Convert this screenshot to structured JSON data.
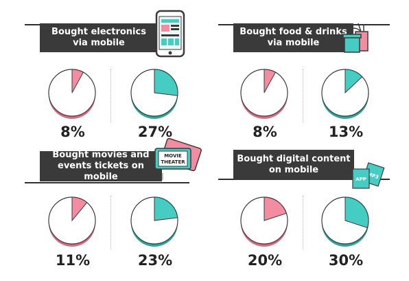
{
  "colors": {
    "pink": "#f48ca0",
    "pink_shadow": "#d96b80",
    "teal": "#45cdc4",
    "teal_shadow": "#2aa79f",
    "banner": "#3a3a3a"
  },
  "icons": {
    "electronics": "smartphone-icon",
    "food": "takeaway-drink-icon",
    "movies": "movie-ticket-icon",
    "digital": "app-mp3-icon"
  },
  "movie_ticket_text": {
    "line1": "MOVIE",
    "line2": "THEATER"
  },
  "digital_icon_text": {
    "app": "APP",
    "mp3": "MP3"
  },
  "chart_data": [
    {
      "type": "pie",
      "title": "Bought electronics via mobile",
      "title_lines": [
        "Bought electronics",
        "via mobile"
      ],
      "values": [
        8,
        27
      ],
      "labels": [
        "8%",
        "27%"
      ]
    },
    {
      "type": "pie",
      "title": "Bought food & drinks via mobile",
      "title_lines": [
        "Bought food & drinks",
        "via mobile"
      ],
      "values": [
        8,
        13
      ],
      "labels": [
        "8%",
        "13%"
      ]
    },
    {
      "type": "pie",
      "title": "Bought movies and events tickets on mobile",
      "title_lines": [
        "Bought movies and",
        "events tickets on mobile"
      ],
      "values": [
        11,
        23
      ],
      "labels": [
        "11%",
        "23%"
      ]
    },
    {
      "type": "pie",
      "title": "Bought digital content on mobile",
      "title_lines": [
        "Bought digital content",
        "on mobile"
      ],
      "values": [
        20,
        30
      ],
      "labels": [
        "20%",
        "30%"
      ]
    }
  ]
}
